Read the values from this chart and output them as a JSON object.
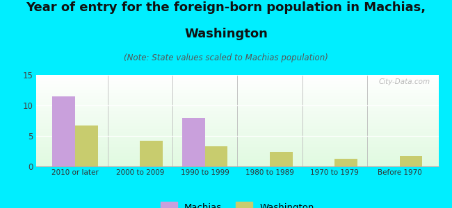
{
  "title_line1": "Year of entry for the foreign-born population in Machias,",
  "title_line2": "Washington",
  "subtitle": "(Note: State values scaled to Machias population)",
  "categories": [
    "2010 or later",
    "2000 to 2009",
    "1990 to 1999",
    "1980 to 1989",
    "1970 to 1979",
    "Before 1970"
  ],
  "machias_values": [
    11.5,
    0,
    8.0,
    0,
    0,
    0
  ],
  "washington_values": [
    6.7,
    4.2,
    3.3,
    2.4,
    1.3,
    1.7
  ],
  "machias_color": "#c9a0dc",
  "washington_color": "#c8cc6e",
  "background_color": "#00eeff",
  "ylim": [
    0,
    15
  ],
  "yticks": [
    0,
    5,
    10,
    15
  ],
  "bar_width": 0.35,
  "legend_labels": [
    "Machias",
    "Washington"
  ],
  "watermark": "City-Data.com",
  "title_fontsize": 13,
  "subtitle_fontsize": 8.5
}
